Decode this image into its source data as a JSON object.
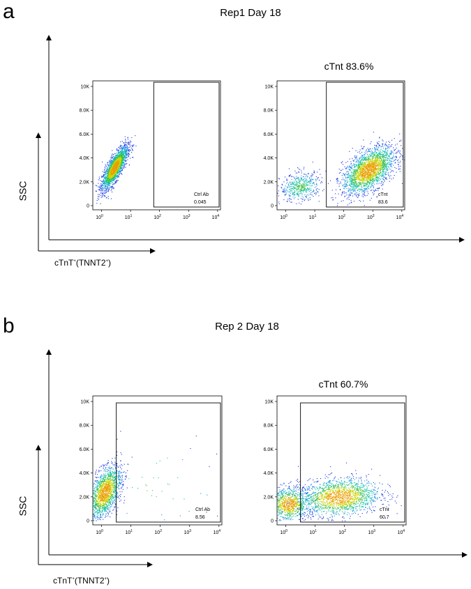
{
  "panels": [
    {
      "letter": "a",
      "title": "Rep1 Day 18",
      "y_axis_label": "SSC",
      "x_axis_label": "cTnT",
      "x_axis_label_sup1": "+",
      "x_axis_label_mid": "(TNNT2",
      "x_axis_label_sup2": "+",
      "x_axis_label_end": ")"
    },
    {
      "letter": "b",
      "title": "Rep 2 Day 18",
      "y_axis_label": "SSC",
      "x_axis_label": "cTnT",
      "x_axis_label_sup1": "+",
      "x_axis_label_mid": "(TNNT2",
      "x_axis_label_sup2": "+",
      "x_axis_label_end": ")"
    }
  ],
  "chart_data": [
    {
      "type": "scatter",
      "panel": "a",
      "title": "",
      "xscale": "log",
      "x_ticks": [
        "10^0",
        "10^1",
        "10^2",
        "10^3",
        "10^4"
      ],
      "y_ticks": [
        "0",
        "2.0K",
        "4.0K",
        "6.0K",
        "8.0K",
        "10K"
      ],
      "ylim": [
        0,
        10000
      ],
      "gate": {
        "name": "Ctrl Ab",
        "value": "0.045",
        "x_min": 1.8
      },
      "population": {
        "cx": 0.45,
        "cy": 3200,
        "sx": 0.22,
        "sy": 900,
        "n": 2200,
        "corr": 0.8
      }
    },
    {
      "type": "scatter",
      "panel": "a",
      "title": "cTnt 83.6%",
      "xscale": "log",
      "x_ticks": [
        "10^0",
        "10^1",
        "10^2",
        "10^3",
        "10^4"
      ],
      "y_ticks": [
        "0",
        "2.0K",
        "4.0K",
        "6.0K",
        "8.0K",
        "10K"
      ],
      "ylim": [
        0,
        10000
      ],
      "gate": {
        "name": "cTnt",
        "value": "83.6",
        "x_min": 1.4
      },
      "population": {
        "cx": 2.85,
        "cy": 3000,
        "sx": 0.45,
        "sy": 1000,
        "n": 2200,
        "corr": 0.55
      },
      "population2": {
        "cx": 0.5,
        "cy": 1600,
        "sx": 0.35,
        "sy": 600,
        "n": 500,
        "corr": 0.2
      }
    },
    {
      "type": "scatter",
      "panel": "b",
      "title": "",
      "xscale": "log",
      "x_ticks": [
        "10^0",
        "10^1",
        "10^2",
        "10^3",
        "10^4"
      ],
      "y_ticks": [
        "0",
        "2.0K",
        "4.0K",
        "6.0K",
        "8.0K",
        "10K"
      ],
      "ylim": [
        0,
        10000
      ],
      "gate": {
        "name": "Ctrl Ab",
        "value": "8.56",
        "x_min": 0.5
      },
      "population": {
        "cx": 0.1,
        "cy": 2400,
        "sx": 0.28,
        "sy": 1100,
        "n": 1600,
        "corr": 0.5
      },
      "population2": {
        "cx": 2.0,
        "cy": 3000,
        "sx": 1.0,
        "sy": 2000,
        "n": 40,
        "corr": 0.0
      }
    },
    {
      "type": "scatter",
      "panel": "b",
      "title": "cTnt 60.7%",
      "xscale": "log",
      "x_ticks": [
        "10^0",
        "10^1",
        "10^2",
        "10^3",
        "10^4"
      ],
      "y_ticks": [
        "0",
        "2.0K",
        "4.0K",
        "6.0K",
        "8.0K",
        "10K"
      ],
      "ylim": [
        0,
        10000
      ],
      "gate": {
        "name": "cTnt",
        "value": "60.7",
        "x_min": 0.5
      },
      "population": {
        "cx": 1.8,
        "cy": 2000,
        "sx": 0.7,
        "sy": 800,
        "n": 1700,
        "corr": 0.15
      },
      "population2": {
        "cx": 0.1,
        "cy": 1400,
        "sx": 0.35,
        "sy": 700,
        "n": 900,
        "corr": 0.0
      }
    }
  ]
}
